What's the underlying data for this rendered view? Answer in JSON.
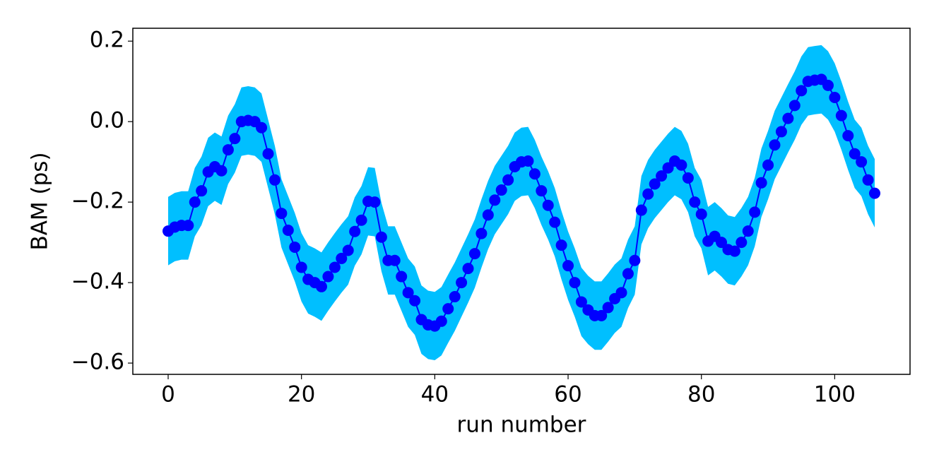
{
  "chart_data": {
    "type": "line",
    "xlabel": "run number",
    "ylabel": "BAM (ps)",
    "x": [
      0,
      1,
      2,
      3,
      4,
      5,
      6,
      7,
      8,
      9,
      10,
      11,
      12,
      13,
      14,
      15,
      16,
      17,
      18,
      19,
      20,
      21,
      22,
      23,
      24,
      25,
      26,
      27,
      28,
      29,
      30,
      31,
      32,
      33,
      34,
      35,
      36,
      37,
      38,
      39,
      40,
      41,
      42,
      43,
      44,
      45,
      46,
      47,
      48,
      49,
      50,
      51,
      52,
      53,
      54,
      55,
      56,
      57,
      58,
      59,
      60,
      61,
      62,
      63,
      64,
      65,
      66,
      67,
      68,
      69,
      70,
      71,
      72,
      73,
      74,
      75,
      76,
      77,
      78,
      79,
      80,
      81,
      82,
      83,
      84,
      85,
      86,
      87,
      88,
      89,
      90,
      91,
      92,
      93,
      94,
      95,
      96,
      97,
      98,
      99,
      100,
      101,
      102,
      103,
      104,
      105,
      106
    ],
    "series": [
      {
        "color": "#0000ff",
        "band_color": "#00bfff",
        "error": 0.085,
        "values": [
          -0.272,
          -0.262,
          -0.258,
          -0.258,
          -0.2,
          -0.172,
          -0.125,
          -0.112,
          -0.122,
          -0.07,
          -0.042,
          0.0,
          0.003,
          0.0,
          -0.015,
          -0.08,
          -0.145,
          -0.228,
          -0.27,
          -0.312,
          -0.362,
          -0.392,
          -0.4,
          -0.41,
          -0.385,
          -0.362,
          -0.34,
          -0.32,
          -0.273,
          -0.245,
          -0.198,
          -0.2,
          -0.287,
          -0.345,
          -0.345,
          -0.385,
          -0.425,
          -0.445,
          -0.492,
          -0.505,
          -0.508,
          -0.496,
          -0.465,
          -0.435,
          -0.4,
          -0.365,
          -0.328,
          -0.278,
          -0.232,
          -0.195,
          -0.17,
          -0.145,
          -0.112,
          -0.1,
          -0.098,
          -0.13,
          -0.172,
          -0.208,
          -0.25,
          -0.307,
          -0.358,
          -0.4,
          -0.448,
          -0.468,
          -0.482,
          -0.482,
          -0.462,
          -0.44,
          -0.425,
          -0.378,
          -0.345,
          -0.22,
          -0.18,
          -0.155,
          -0.135,
          -0.115,
          -0.098,
          -0.108,
          -0.14,
          -0.2,
          -0.23,
          -0.297,
          -0.285,
          -0.3,
          -0.318,
          -0.322,
          -0.3,
          -0.272,
          -0.225,
          -0.152,
          -0.108,
          -0.058,
          -0.025,
          0.008,
          0.04,
          0.077,
          0.1,
          0.103,
          0.105,
          0.09,
          0.06,
          0.015,
          -0.035,
          -0.08,
          -0.1,
          -0.145,
          -0.178
        ]
      }
    ],
    "xlim": [
      -5.3,
      111.3
    ],
    "ylim": [
      -0.628,
      0.232
    ],
    "xticks": [
      0,
      20,
      40,
      60,
      80,
      100
    ],
    "yticks": [
      {
        "value": -0.6,
        "label": "−0.6"
      },
      {
        "value": -0.4,
        "label": "−0.4"
      },
      {
        "value": -0.2,
        "label": "−0.2"
      },
      {
        "value": 0,
        "label": "0.0"
      },
      0.2
    ]
  }
}
